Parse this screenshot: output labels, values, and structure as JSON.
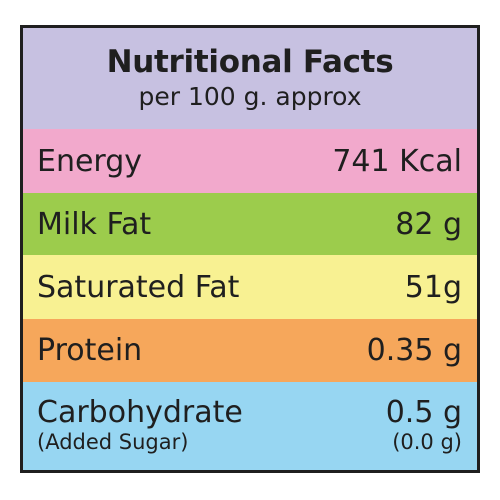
{
  "header": {
    "title": "Nutritional Facts",
    "subtitle": "per 100 g. approx"
  },
  "rows": [
    {
      "label": "Energy",
      "value": "741 Kcal",
      "color": "#f2a9cc"
    },
    {
      "label": "Milk Fat",
      "value": "82 g",
      "color": "#9ccc4c"
    },
    {
      "label": "Saturated Fat",
      "value": "51g",
      "color": "#f8f192"
    },
    {
      "label": "Protein",
      "value": "0.35 g",
      "color": "#f6a75b"
    },
    {
      "label": "Carbohydrate",
      "value": "0.5 g",
      "sub_label": "(Added Sugar)",
      "sub_value": "(0.0 g)",
      "color": "#97d6f2"
    }
  ],
  "colors": {
    "header": "#c7c1e1",
    "border": "#1f1f1f"
  }
}
